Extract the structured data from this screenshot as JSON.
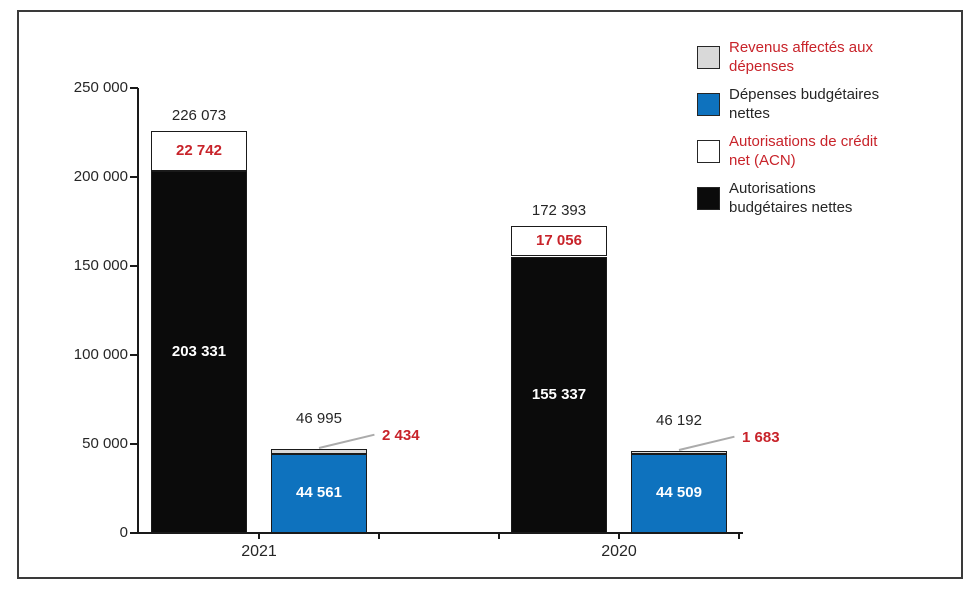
{
  "figure": {
    "background": "#ffffff",
    "frame_border_color": "#3a3a3a"
  },
  "colors": {
    "blue_series": "#0E72BE",
    "black_series": "#0b0b0b",
    "white_series": "#ffffff",
    "grey_series": "#D9D9D9",
    "red_text": "#C8232A",
    "dark_text": "#262626",
    "leader_line": "#ABABAB",
    "axis": "#1a1a1a"
  },
  "chart_data": {
    "type": "bar",
    "subtype": "grouped-stacked-columns",
    "grid": false,
    "y_axis": {
      "min": 0,
      "max": 250000,
      "tick_step": 50000,
      "tick_labels": [
        "0",
        "50 000",
        "100 000",
        "150 000",
        "200 000",
        "250 000"
      ]
    },
    "x_axis": {
      "categories": [
        "2021",
        "2020"
      ]
    },
    "legend": {
      "position": "top-right",
      "items": [
        {
          "label": "Revenus affectés aux\ndépenses",
          "swatch_color": "#D9D9D9",
          "text_color": "#C8232A",
          "swatch_name": "grey-swatch"
        },
        {
          "label": "Dépenses budgétaires\nnettes",
          "swatch_color": "#0E72BE",
          "text_color": "#262626",
          "swatch_name": "blue-swatch"
        },
        {
          "label": "Autorisations de crédit\nnet (ACN)",
          "swatch_color": "#ffffff",
          "text_color": "#C8232A",
          "swatch_name": "white-swatch"
        },
        {
          "label": "Autorisations\nbudgétaires nettes",
          "swatch_color": "#0b0b0b",
          "text_color": "#262626",
          "swatch_name": "black-swatch"
        }
      ]
    },
    "groups": [
      {
        "category": "2021",
        "bars": [
          {
            "name": "autorisations-2021",
            "total": 226073,
            "total_label": "226 073",
            "segments": [
              {
                "series": "Autorisations budgétaires nettes",
                "value": 203331,
                "label": "203 331",
                "fill": "#0b0b0b",
                "label_color": "#ffffff"
              },
              {
                "series": "Autorisations de crédit net (ACN)",
                "value": 22742,
                "label": "22 742",
                "fill": "#ffffff",
                "label_color": "#C8232A"
              }
            ]
          },
          {
            "name": "depenses-2021",
            "total": 46995,
            "total_label": "46 995",
            "segments": [
              {
                "series": "Dépenses budgétaires nettes",
                "value": 44561,
                "label": "44 561",
                "fill": "#0E72BE",
                "label_color": "#ffffff"
              },
              {
                "series": "Revenus affectés aux dépenses",
                "value": 2434,
                "label": "2 434",
                "fill": "#D9D9D9",
                "label_color": "#C8232A",
                "callout": true
              }
            ]
          }
        ]
      },
      {
        "category": "2020",
        "bars": [
          {
            "name": "autorisations-2020",
            "total": 172393,
            "total_label": "172 393",
            "segments": [
              {
                "series": "Autorisations budgétaires nettes",
                "value": 155337,
                "label": "155 337",
                "fill": "#0b0b0b",
                "label_color": "#ffffff"
              },
              {
                "series": "Autorisations de crédit net (ACN)",
                "value": 17056,
                "label": "17 056",
                "fill": "#ffffff",
                "label_color": "#C8232A"
              }
            ]
          },
          {
            "name": "depenses-2020",
            "total": 46192,
            "total_label": "46 192",
            "segments": [
              {
                "series": "Dépenses budgétaires nettes",
                "value": 44509,
                "label": "44 509",
                "fill": "#0E72BE",
                "label_color": "#ffffff"
              },
              {
                "series": "Revenus affectés aux dépenses",
                "value": 1683,
                "label": "1 683",
                "fill": "#D9D9D9",
                "label_color": "#C8232A",
                "callout": true
              }
            ]
          }
        ]
      }
    ]
  }
}
